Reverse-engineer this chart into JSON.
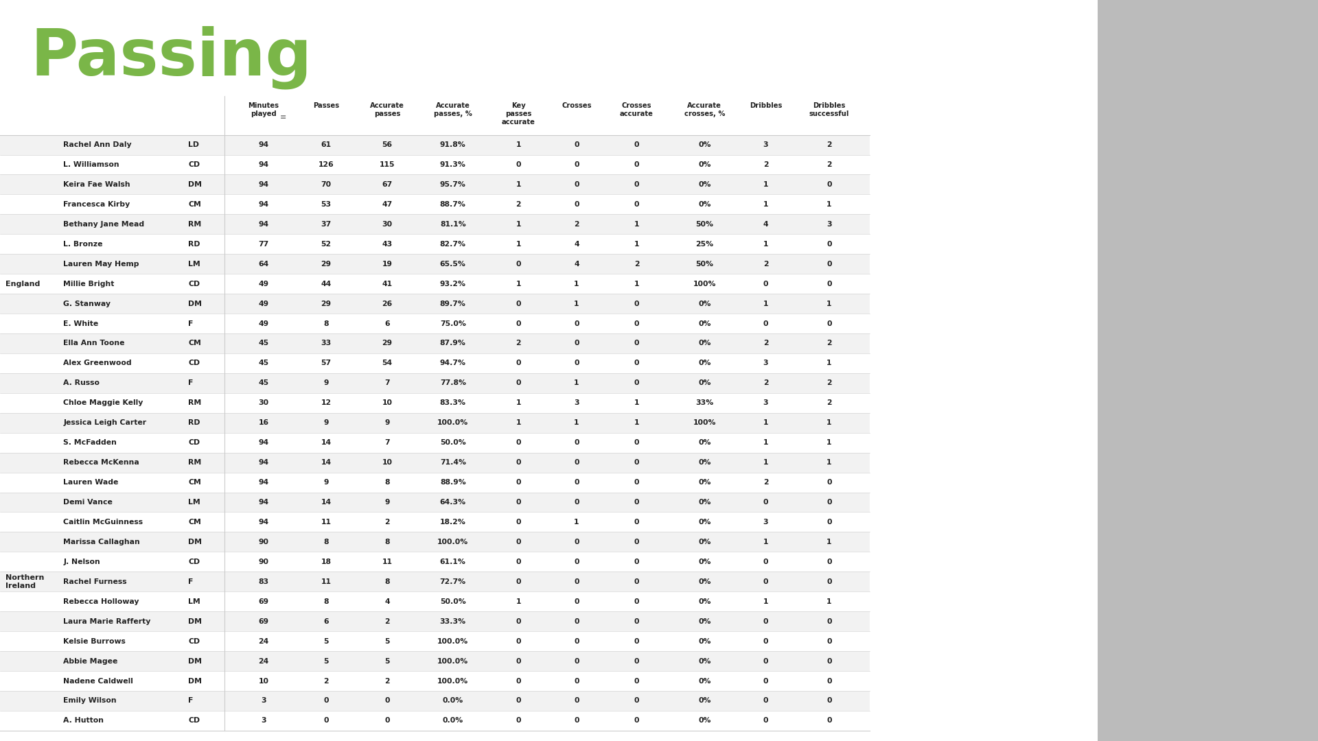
{
  "title": "Passing",
  "title_color": "#7ab648",
  "background_color": "#ffffff",
  "col_headers": [
    "Minutes\nplayed",
    "Passes",
    "Accurate\npasses",
    "Accurate\npasses, %",
    "Key\npasses\naccurate",
    "Crosses",
    "Crosses\naccurate",
    "Accurate\ncrosses, %",
    "Dribbles",
    "Dribbles\nsuccessful"
  ],
  "england_label": "England",
  "ni_label": "Northern\nIreland",
  "rows": [
    {
      "team": "England",
      "name": "Rachel Ann Daly",
      "pos": "LD",
      "mins": "94",
      "passes": "61",
      "acc_passes": "56",
      "acc_pct": "91.8%",
      "key_passes": "1",
      "crosses": "0",
      "cross_acc": "0",
      "cross_pct": "0%",
      "dribbles": "3",
      "drib_succ": "2"
    },
    {
      "team": "England",
      "name": "L. Williamson",
      "pos": "CD",
      "mins": "94",
      "passes": "126",
      "acc_passes": "115",
      "acc_pct": "91.3%",
      "key_passes": "0",
      "crosses": "0",
      "cross_acc": "0",
      "cross_pct": "0%",
      "dribbles": "2",
      "drib_succ": "2"
    },
    {
      "team": "England",
      "name": "Keira Fae Walsh",
      "pos": "DM",
      "mins": "94",
      "passes": "70",
      "acc_passes": "67",
      "acc_pct": "95.7%",
      "key_passes": "1",
      "crosses": "0",
      "cross_acc": "0",
      "cross_pct": "0%",
      "dribbles": "1",
      "drib_succ": "0"
    },
    {
      "team": "England",
      "name": "Francesca Kirby",
      "pos": "CM",
      "mins": "94",
      "passes": "53",
      "acc_passes": "47",
      "acc_pct": "88.7%",
      "key_passes": "2",
      "crosses": "0",
      "cross_acc": "0",
      "cross_pct": "0%",
      "dribbles": "1",
      "drib_succ": "1"
    },
    {
      "team": "England",
      "name": "Bethany Jane Mead",
      "pos": "RM",
      "mins": "94",
      "passes": "37",
      "acc_passes": "30",
      "acc_pct": "81.1%",
      "key_passes": "1",
      "crosses": "2",
      "cross_acc": "1",
      "cross_pct": "50%",
      "dribbles": "4",
      "drib_succ": "3"
    },
    {
      "team": "England",
      "name": "L. Bronze",
      "pos": "RD",
      "mins": "77",
      "passes": "52",
      "acc_passes": "43",
      "acc_pct": "82.7%",
      "key_passes": "1",
      "crosses": "4",
      "cross_acc": "1",
      "cross_pct": "25%",
      "dribbles": "1",
      "drib_succ": "0"
    },
    {
      "team": "England",
      "name": "Lauren May Hemp",
      "pos": "LM",
      "mins": "64",
      "passes": "29",
      "acc_passes": "19",
      "acc_pct": "65.5%",
      "key_passes": "0",
      "crosses": "4",
      "cross_acc": "2",
      "cross_pct": "50%",
      "dribbles": "2",
      "drib_succ": "0"
    },
    {
      "team": "England",
      "name": "Millie Bright",
      "pos": "CD",
      "mins": "49",
      "passes": "44",
      "acc_passes": "41",
      "acc_pct": "93.2%",
      "key_passes": "1",
      "crosses": "1",
      "cross_acc": "1",
      "cross_pct": "100%",
      "dribbles": "0",
      "drib_succ": "0"
    },
    {
      "team": "England",
      "name": "G. Stanway",
      "pos": "DM",
      "mins": "49",
      "passes": "29",
      "acc_passes": "26",
      "acc_pct": "89.7%",
      "key_passes": "0",
      "crosses": "1",
      "cross_acc": "0",
      "cross_pct": "0%",
      "dribbles": "1",
      "drib_succ": "1"
    },
    {
      "team": "England",
      "name": "E. White",
      "pos": "F",
      "mins": "49",
      "passes": "8",
      "acc_passes": "6",
      "acc_pct": "75.0%",
      "key_passes": "0",
      "crosses": "0",
      "cross_acc": "0",
      "cross_pct": "0%",
      "dribbles": "0",
      "drib_succ": "0"
    },
    {
      "team": "England",
      "name": "Ella Ann Toone",
      "pos": "CM",
      "mins": "45",
      "passes": "33",
      "acc_passes": "29",
      "acc_pct": "87.9%",
      "key_passes": "2",
      "crosses": "0",
      "cross_acc": "0",
      "cross_pct": "0%",
      "dribbles": "2",
      "drib_succ": "2"
    },
    {
      "team": "England",
      "name": "Alex Greenwood",
      "pos": "CD",
      "mins": "45",
      "passes": "57",
      "acc_passes": "54",
      "acc_pct": "94.7%",
      "key_passes": "0",
      "crosses": "0",
      "cross_acc": "0",
      "cross_pct": "0%",
      "dribbles": "3",
      "drib_succ": "1"
    },
    {
      "team": "England",
      "name": "A. Russo",
      "pos": "F",
      "mins": "45",
      "passes": "9",
      "acc_passes": "7",
      "acc_pct": "77.8%",
      "key_passes": "0",
      "crosses": "1",
      "cross_acc": "0",
      "cross_pct": "0%",
      "dribbles": "2",
      "drib_succ": "2"
    },
    {
      "team": "England",
      "name": "Chloe Maggie Kelly",
      "pos": "RM",
      "mins": "30",
      "passes": "12",
      "acc_passes": "10",
      "acc_pct": "83.3%",
      "key_passes": "1",
      "crosses": "3",
      "cross_acc": "1",
      "cross_pct": "33%",
      "dribbles": "3",
      "drib_succ": "2"
    },
    {
      "team": "England",
      "name": "Jessica Leigh Carter",
      "pos": "RD",
      "mins": "16",
      "passes": "9",
      "acc_passes": "9",
      "acc_pct": "100.0%",
      "key_passes": "1",
      "crosses": "1",
      "cross_acc": "1",
      "cross_pct": "100%",
      "dribbles": "1",
      "drib_succ": "1"
    },
    {
      "team": "NI",
      "name": "S. McFadden",
      "pos": "CD",
      "mins": "94",
      "passes": "14",
      "acc_passes": "7",
      "acc_pct": "50.0%",
      "key_passes": "0",
      "crosses": "0",
      "cross_acc": "0",
      "cross_pct": "0%",
      "dribbles": "1",
      "drib_succ": "1"
    },
    {
      "team": "NI",
      "name": "Rebecca McKenna",
      "pos": "RM",
      "mins": "94",
      "passes": "14",
      "acc_passes": "10",
      "acc_pct": "71.4%",
      "key_passes": "0",
      "crosses": "0",
      "cross_acc": "0",
      "cross_pct": "0%",
      "dribbles": "1",
      "drib_succ": "1"
    },
    {
      "team": "NI",
      "name": "Lauren Wade",
      "pos": "CM",
      "mins": "94",
      "passes": "9",
      "acc_passes": "8",
      "acc_pct": "88.9%",
      "key_passes": "0",
      "crosses": "0",
      "cross_acc": "0",
      "cross_pct": "0%",
      "dribbles": "2",
      "drib_succ": "0"
    },
    {
      "team": "NI",
      "name": "Demi Vance",
      "pos": "LM",
      "mins": "94",
      "passes": "14",
      "acc_passes": "9",
      "acc_pct": "64.3%",
      "key_passes": "0",
      "crosses": "0",
      "cross_acc": "0",
      "cross_pct": "0%",
      "dribbles": "0",
      "drib_succ": "0"
    },
    {
      "team": "NI",
      "name": "Caitlin McGuinness",
      "pos": "CM",
      "mins": "94",
      "passes": "11",
      "acc_passes": "2",
      "acc_pct": "18.2%",
      "key_passes": "0",
      "crosses": "1",
      "cross_acc": "0",
      "cross_pct": "0%",
      "dribbles": "3",
      "drib_succ": "0"
    },
    {
      "team": "NI",
      "name": "Marissa Callaghan",
      "pos": "DM",
      "mins": "90",
      "passes": "8",
      "acc_passes": "8",
      "acc_pct": "100.0%",
      "key_passes": "0",
      "crosses": "0",
      "cross_acc": "0",
      "cross_pct": "0%",
      "dribbles": "1",
      "drib_succ": "1"
    },
    {
      "team": "NI",
      "name": "J. Nelson",
      "pos": "CD",
      "mins": "90",
      "passes": "18",
      "acc_passes": "11",
      "acc_pct": "61.1%",
      "key_passes": "0",
      "crosses": "0",
      "cross_acc": "0",
      "cross_pct": "0%",
      "dribbles": "0",
      "drib_succ": "0"
    },
    {
      "team": "NI",
      "name": "Rachel Furness",
      "pos": "F",
      "mins": "83",
      "passes": "11",
      "acc_passes": "8",
      "acc_pct": "72.7%",
      "key_passes": "0",
      "crosses": "0",
      "cross_acc": "0",
      "cross_pct": "0%",
      "dribbles": "0",
      "drib_succ": "0"
    },
    {
      "team": "NI",
      "name": "Rebecca Holloway",
      "pos": "LM",
      "mins": "69",
      "passes": "8",
      "acc_passes": "4",
      "acc_pct": "50.0%",
      "key_passes": "1",
      "crosses": "0",
      "cross_acc": "0",
      "cross_pct": "0%",
      "dribbles": "1",
      "drib_succ": "1"
    },
    {
      "team": "NI",
      "name": "Laura Marie Rafferty",
      "pos": "DM",
      "mins": "69",
      "passes": "6",
      "acc_passes": "2",
      "acc_pct": "33.3%",
      "key_passes": "0",
      "crosses": "0",
      "cross_acc": "0",
      "cross_pct": "0%",
      "dribbles": "0",
      "drib_succ": "0"
    },
    {
      "team": "NI",
      "name": "Kelsie Burrows",
      "pos": "CD",
      "mins": "24",
      "passes": "5",
      "acc_passes": "5",
      "acc_pct": "100.0%",
      "key_passes": "0",
      "crosses": "0",
      "cross_acc": "0",
      "cross_pct": "0%",
      "dribbles": "0",
      "drib_succ": "0"
    },
    {
      "team": "NI",
      "name": "Abbie Magee",
      "pos": "DM",
      "mins": "24",
      "passes": "5",
      "acc_passes": "5",
      "acc_pct": "100.0%",
      "key_passes": "0",
      "crosses": "0",
      "cross_acc": "0",
      "cross_pct": "0%",
      "dribbles": "0",
      "drib_succ": "0"
    },
    {
      "team": "NI",
      "name": "Nadene Caldwell",
      "pos": "DM",
      "mins": "10",
      "passes": "2",
      "acc_passes": "2",
      "acc_pct": "100.0%",
      "key_passes": "0",
      "crosses": "0",
      "cross_acc": "0",
      "cross_pct": "0%",
      "dribbles": "0",
      "drib_succ": "0"
    },
    {
      "team": "NI",
      "name": "Emily Wilson",
      "pos": "F",
      "mins": "3",
      "passes": "0",
      "acc_passes": "0",
      "acc_pct": "0.0%",
      "key_passes": "0",
      "crosses": "0",
      "cross_acc": "0",
      "cross_pct": "0%",
      "dribbles": "0",
      "drib_succ": "0"
    },
    {
      "team": "NI",
      "name": "A. Hutton",
      "pos": "CD",
      "mins": "3",
      "passes": "0",
      "acc_passes": "0",
      "acc_pct": "0.0%",
      "key_passes": "0",
      "crosses": "0",
      "cross_acc": "0",
      "cross_pct": "0%",
      "dribbles": "0",
      "drib_succ": "0"
    }
  ],
  "row_colors": [
    "#f2f2f2",
    "#ffffff"
  ],
  "header_color": "#ffffff",
  "text_color": "#222222",
  "line_color": "#cccccc",
  "filter_icon": "≡"
}
